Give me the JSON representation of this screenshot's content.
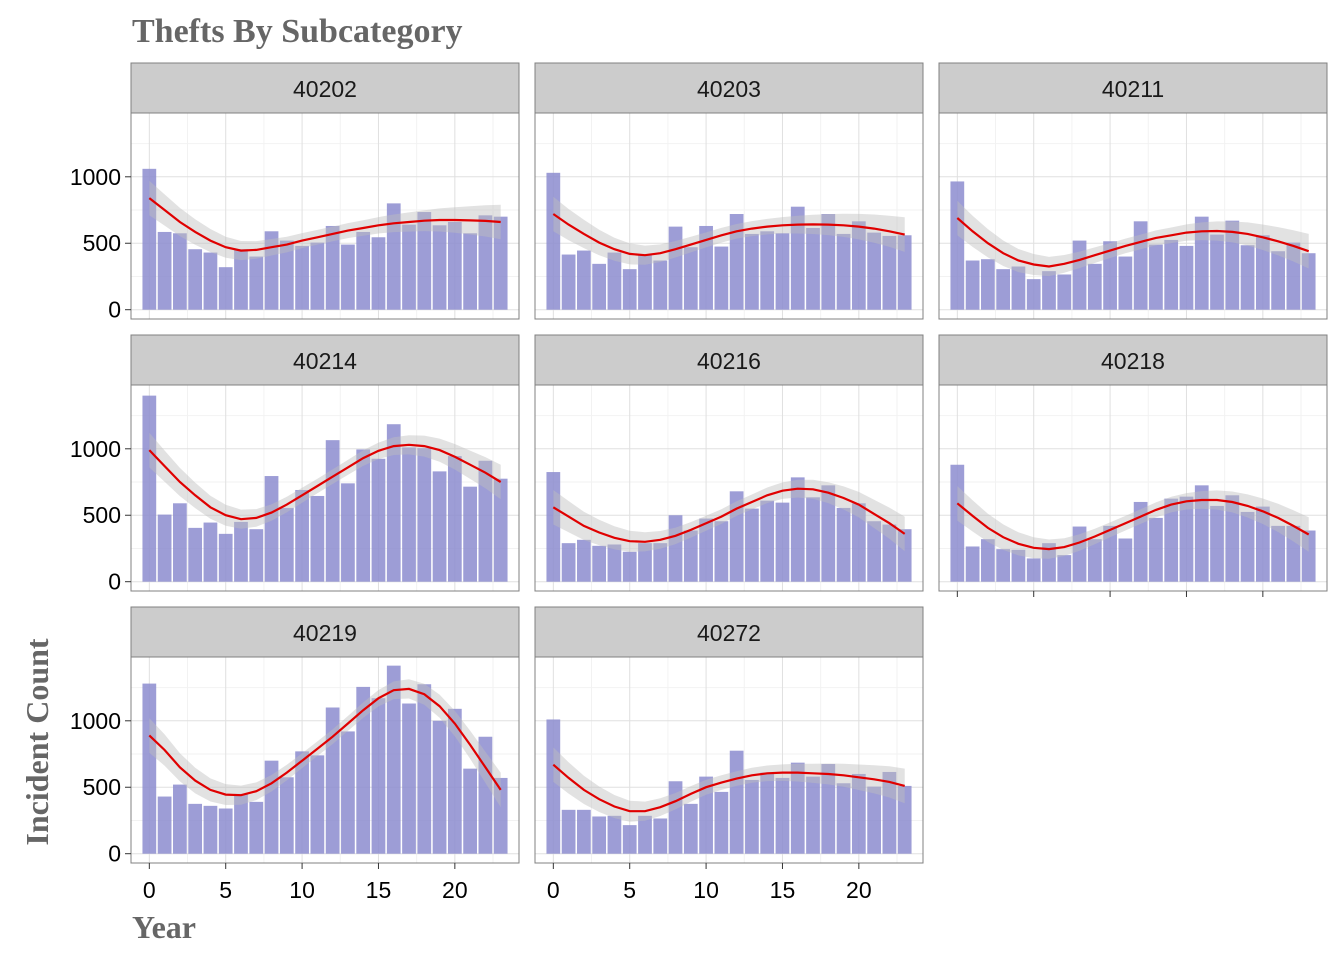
{
  "chart_data": {
    "type": "bar",
    "title": "Thefts By Subcategory",
    "xlabel": "Year",
    "ylabel": "Incident Count",
    "x": [
      0,
      1,
      2,
      3,
      4,
      5,
      6,
      7,
      8,
      9,
      10,
      11,
      12,
      13,
      14,
      15,
      16,
      17,
      18,
      19,
      20,
      21,
      22,
      23
    ],
    "x_ticks": [
      0,
      5,
      10,
      15,
      20
    ],
    "y_ticks": [
      0,
      500,
      1000
    ],
    "ylim": [
      -70,
      1480
    ],
    "xlim": [
      -1.2,
      24.2
    ],
    "grid": true,
    "bar_color": "#8C8CCF",
    "smooth_color": "#E00000",
    "ribbon_color": "#BEBEBE",
    "panels": [
      {
        "name": "40202",
        "values": [
          1060,
          585,
          575,
          455,
          430,
          320,
          455,
          400,
          590,
          520,
          480,
          505,
          630,
          490,
          585,
          545,
          800,
          640,
          735,
          635,
          660,
          575,
          710,
          700
        ],
        "smooth": [
          [
            0,
            840
          ],
          [
            1,
            750
          ],
          [
            2,
            660
          ],
          [
            3,
            585
          ],
          [
            4,
            520
          ],
          [
            5,
            470
          ],
          [
            6,
            445
          ],
          [
            7,
            450
          ],
          [
            8,
            470
          ],
          [
            9,
            490
          ],
          [
            10,
            520
          ],
          [
            11,
            545
          ],
          [
            12,
            570
          ],
          [
            13,
            595
          ],
          [
            14,
            615
          ],
          [
            15,
            635
          ],
          [
            16,
            650
          ],
          [
            17,
            660
          ],
          [
            18,
            670
          ],
          [
            19,
            675
          ],
          [
            20,
            675
          ],
          [
            21,
            672
          ],
          [
            22,
            668
          ],
          [
            23,
            660
          ]
        ]
      },
      {
        "name": "40203",
        "values": [
          1030,
          415,
          445,
          345,
          430,
          305,
          415,
          370,
          625,
          470,
          630,
          475,
          720,
          570,
          590,
          575,
          775,
          615,
          720,
          570,
          665,
          580,
          555,
          560
        ],
        "smooth": [
          [
            0,
            720
          ],
          [
            1,
            640
          ],
          [
            2,
            570
          ],
          [
            3,
            505
          ],
          [
            4,
            455
          ],
          [
            5,
            420
          ],
          [
            6,
            410
          ],
          [
            7,
            425
          ],
          [
            8,
            455
          ],
          [
            9,
            490
          ],
          [
            10,
            525
          ],
          [
            11,
            560
          ],
          [
            12,
            590
          ],
          [
            13,
            610
          ],
          [
            14,
            625
          ],
          [
            15,
            635
          ],
          [
            16,
            640
          ],
          [
            17,
            642
          ],
          [
            18,
            640
          ],
          [
            19,
            635
          ],
          [
            20,
            625
          ],
          [
            21,
            610
          ],
          [
            22,
            590
          ],
          [
            23,
            565
          ]
        ]
      },
      {
        "name": "40211",
        "values": [
          965,
          370,
          380,
          305,
          325,
          230,
          290,
          265,
          520,
          345,
          515,
          400,
          665,
          490,
          525,
          480,
          700,
          565,
          670,
          485,
          560,
          440,
          505,
          425
        ],
        "smooth": [
          [
            0,
            690
          ],
          [
            1,
            590
          ],
          [
            2,
            500
          ],
          [
            3,
            425
          ],
          [
            4,
            370
          ],
          [
            5,
            340
          ],
          [
            6,
            325
          ],
          [
            7,
            345
          ],
          [
            8,
            375
          ],
          [
            9,
            410
          ],
          [
            10,
            445
          ],
          [
            11,
            480
          ],
          [
            12,
            510
          ],
          [
            13,
            540
          ],
          [
            14,
            560
          ],
          [
            15,
            580
          ],
          [
            16,
            590
          ],
          [
            17,
            592
          ],
          [
            18,
            585
          ],
          [
            19,
            570
          ],
          [
            20,
            545
          ],
          [
            21,
            515
          ],
          [
            22,
            480
          ],
          [
            23,
            440
          ]
        ]
      },
      {
        "name": "40214",
        "values": [
          1400,
          505,
          590,
          405,
          445,
          360,
          450,
          395,
          795,
          555,
          690,
          645,
          1065,
          740,
          995,
          925,
          1185,
          1010,
          1005,
          830,
          945,
          715,
          910,
          775
        ],
        "smooth": [
          [
            0,
            990
          ],
          [
            1,
            870
          ],
          [
            2,
            750
          ],
          [
            3,
            650
          ],
          [
            4,
            560
          ],
          [
            5,
            500
          ],
          [
            6,
            470
          ],
          [
            7,
            480
          ],
          [
            8,
            520
          ],
          [
            9,
            580
          ],
          [
            10,
            650
          ],
          [
            11,
            720
          ],
          [
            12,
            790
          ],
          [
            13,
            860
          ],
          [
            14,
            930
          ],
          [
            15,
            985
          ],
          [
            16,
            1020
          ],
          [
            17,
            1030
          ],
          [
            18,
            1020
          ],
          [
            19,
            990
          ],
          [
            20,
            940
          ],
          [
            21,
            880
          ],
          [
            22,
            820
          ],
          [
            23,
            750
          ]
        ]
      },
      {
        "name": "40216",
        "values": [
          825,
          290,
          315,
          270,
          280,
          225,
          290,
          290,
          500,
          385,
          475,
          455,
          680,
          550,
          610,
          595,
          785,
          635,
          725,
          555,
          590,
          455,
          430,
          395
        ],
        "smooth": [
          [
            0,
            560
          ],
          [
            1,
            490
          ],
          [
            2,
            420
          ],
          [
            3,
            370
          ],
          [
            4,
            330
          ],
          [
            5,
            305
          ],
          [
            6,
            300
          ],
          [
            7,
            315
          ],
          [
            8,
            345
          ],
          [
            9,
            390
          ],
          [
            10,
            440
          ],
          [
            11,
            490
          ],
          [
            12,
            550
          ],
          [
            13,
            600
          ],
          [
            14,
            650
          ],
          [
            15,
            685
          ],
          [
            16,
            700
          ],
          [
            17,
            695
          ],
          [
            18,
            670
          ],
          [
            19,
            630
          ],
          [
            20,
            580
          ],
          [
            21,
            510
          ],
          [
            22,
            440
          ],
          [
            23,
            360
          ]
        ]
      },
      {
        "name": "40218",
        "values": [
          880,
          265,
          320,
          245,
          240,
          175,
          290,
          200,
          415,
          320,
          420,
          325,
          600,
          480,
          625,
          640,
          725,
          570,
          650,
          525,
          565,
          420,
          420,
          385
        ],
        "smooth": [
          [
            0,
            590
          ],
          [
            1,
            495
          ],
          [
            2,
            405
          ],
          [
            3,
            335
          ],
          [
            4,
            285
          ],
          [
            5,
            255
          ],
          [
            6,
            245
          ],
          [
            7,
            260
          ],
          [
            8,
            295
          ],
          [
            9,
            340
          ],
          [
            10,
            390
          ],
          [
            11,
            440
          ],
          [
            12,
            490
          ],
          [
            13,
            540
          ],
          [
            14,
            580
          ],
          [
            15,
            605
          ],
          [
            16,
            615
          ],
          [
            17,
            615
          ],
          [
            18,
            600
          ],
          [
            19,
            570
          ],
          [
            20,
            530
          ],
          [
            21,
            480
          ],
          [
            22,
            420
          ],
          [
            23,
            355
          ]
        ]
      },
      {
        "name": "40219",
        "values": [
          1280,
          430,
          520,
          375,
          360,
          340,
          450,
          390,
          700,
          575,
          770,
          740,
          1100,
          920,
          1255,
          1170,
          1415,
          1130,
          1275,
          1000,
          1090,
          640,
          880,
          570
        ],
        "smooth": [
          [
            0,
            890
          ],
          [
            1,
            780
          ],
          [
            2,
            650
          ],
          [
            3,
            550
          ],
          [
            4,
            480
          ],
          [
            5,
            445
          ],
          [
            6,
            440
          ],
          [
            7,
            470
          ],
          [
            8,
            530
          ],
          [
            9,
            610
          ],
          [
            10,
            700
          ],
          [
            11,
            790
          ],
          [
            12,
            880
          ],
          [
            13,
            980
          ],
          [
            14,
            1080
          ],
          [
            15,
            1170
          ],
          [
            16,
            1230
          ],
          [
            17,
            1240
          ],
          [
            18,
            1200
          ],
          [
            19,
            1110
          ],
          [
            20,
            980
          ],
          [
            21,
            820
          ],
          [
            22,
            650
          ],
          [
            23,
            480
          ]
        ]
      },
      {
        "name": "40272",
        "values": [
          1010,
          330,
          330,
          280,
          285,
          215,
          285,
          265,
          545,
          375,
          580,
          465,
          775,
          555,
          610,
          570,
          685,
          580,
          675,
          530,
          600,
          505,
          615,
          510
        ],
        "smooth": [
          [
            0,
            670
          ],
          [
            1,
            570
          ],
          [
            2,
            480
          ],
          [
            3,
            410
          ],
          [
            4,
            355
          ],
          [
            5,
            320
          ],
          [
            6,
            320
          ],
          [
            7,
            350
          ],
          [
            8,
            395
          ],
          [
            9,
            450
          ],
          [
            10,
            500
          ],
          [
            11,
            535
          ],
          [
            12,
            565
          ],
          [
            13,
            590
          ],
          [
            14,
            605
          ],
          [
            15,
            610
          ],
          [
            16,
            610
          ],
          [
            17,
            605
          ],
          [
            18,
            600
          ],
          [
            19,
            590
          ],
          [
            20,
            575
          ],
          [
            21,
            560
          ],
          [
            22,
            540
          ],
          [
            23,
            510
          ]
        ]
      }
    ]
  }
}
